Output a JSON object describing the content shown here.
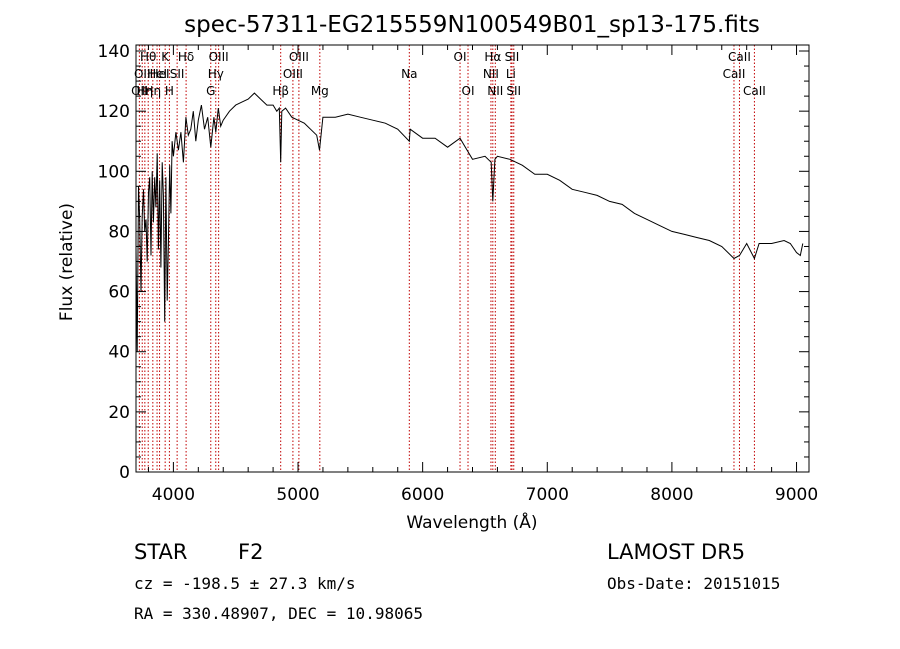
{
  "chart_data": {
    "type": "line",
    "title": "spec-57311-EG215559N100549B01_sp13-175.fits",
    "xlabel": "Wavelength (Å)",
    "ylabel": "Flux (relative)",
    "xlim": [
      3700,
      9100
    ],
    "ylim": [
      0,
      142
    ],
    "xticks": [
      4000,
      5000,
      6000,
      7000,
      8000,
      9000
    ],
    "yticks": [
      0,
      20,
      40,
      60,
      80,
      100,
      120,
      140
    ],
    "grid": false,
    "line_color": "#000000",
    "marker_color": "#c00000",
    "series": [
      {
        "x": [
          3700,
          3710,
          3720,
          3730,
          3740,
          3750,
          3760,
          3770,
          3780,
          3790,
          3800,
          3810,
          3820,
          3830,
          3840,
          3850,
          3860,
          3870,
          3880,
          3890,
          3900,
          3910,
          3920,
          3930,
          3940,
          3950,
          3960,
          3970,
          3980,
          3990,
          4000,
          4020,
          4040,
          4060,
          4080,
          4100,
          4120,
          4140,
          4160,
          4180,
          4200,
          4225,
          4250,
          4275,
          4300,
          4325,
          4340,
          4360,
          4380,
          4400,
          4450,
          4500,
          4550,
          4600,
          4650,
          4700,
          4750,
          4800,
          4830,
          4850,
          4861,
          4870,
          4900,
          4950,
          5000,
          5050,
          5100,
          5150,
          5172,
          5200,
          5300,
          5400,
          5500,
          5600,
          5700,
          5800,
          5893,
          5900,
          6000,
          6100,
          6200,
          6300,
          6400,
          6500,
          6550,
          6563,
          6580,
          6600,
          6700,
          6800,
          6900,
          7000,
          7100,
          7200,
          7300,
          7400,
          7500,
          7600,
          7700,
          7800,
          7900,
          8000,
          8100,
          8200,
          8300,
          8400,
          8498,
          8542,
          8600,
          8662,
          8700,
          8800,
          8900,
          8950,
          9000,
          9030,
          9050
        ],
        "y": [
          75,
          40,
          95,
          84,
          60,
          85,
          94,
          80,
          84,
          70,
          93,
          98,
          72,
          100,
          83,
          98,
          88,
          106,
          74,
          97,
          68,
          103,
          92,
          50,
          98,
          57,
          76,
          102,
          86,
          110,
          105,
          113,
          107,
          113,
          103,
          118,
          112,
          114,
          120,
          110,
          117,
          122,
          114,
          118,
          108,
          118,
          113,
          121,
          115,
          117,
          120,
          122,
          123,
          124,
          126,
          124,
          122,
          122,
          120,
          121,
          103,
          120,
          121,
          118,
          117,
          116,
          114,
          112,
          107,
          118,
          118,
          119,
          118,
          117,
          116,
          114,
          110,
          114,
          111,
          111,
          108,
          111,
          104,
          105,
          103,
          90,
          104,
          105,
          104,
          102,
          99,
          99,
          97,
          94,
          93,
          92,
          90,
          89,
          86,
          84,
          82,
          80,
          79,
          78,
          77,
          75,
          71,
          72,
          76,
          71,
          76,
          76,
          77,
          76,
          73,
          72,
          76
        ]
      }
    ],
    "line_labels": [
      {
        "x": 3727,
        "row": 2,
        "label": "OII"
      },
      {
        "x": 3750,
        "row": 1,
        "label": "OII"
      },
      {
        "x": 3771,
        "row": 2,
        "label": "Hη"
      },
      {
        "x": 3798,
        "row": 0,
        "label": "Hθ"
      },
      {
        "x": 3835,
        "row": 2,
        "label": "Hη"
      },
      {
        "x": 3869,
        "row": 1,
        "label": "HeI"
      },
      {
        "x": 3889,
        "row": 1,
        "label": "HeI"
      },
      {
        "x": 3934,
        "row": 0,
        "label": "K"
      },
      {
        "x": 3968,
        "row": 2,
        "label": "H"
      },
      {
        "x": 4030,
        "row": 1,
        "label": "SII"
      },
      {
        "x": 4102,
        "row": 0,
        "label": "Hδ"
      },
      {
        "x": 4300,
        "row": 2,
        "label": "G"
      },
      {
        "x": 4340,
        "row": 1,
        "label": "Hγ"
      },
      {
        "x": 4363,
        "row": 0,
        "label": "OIII"
      },
      {
        "x": 4861,
        "row": 2,
        "label": "Hβ"
      },
      {
        "x": 4959,
        "row": 1,
        "label": "OIII"
      },
      {
        "x": 5007,
        "row": 0,
        "label": "OIII"
      },
      {
        "x": 5175,
        "row": 2,
        "label": "Mg"
      },
      {
        "x": 5893,
        "row": 1,
        "label": "Na"
      },
      {
        "x": 6300,
        "row": 0,
        "label": "OI"
      },
      {
        "x": 6364,
        "row": 2,
        "label": "OI"
      },
      {
        "x": 6548,
        "row": 1,
        "label": "NII"
      },
      {
        "x": 6563,
        "row": 0,
        "label": "Hα"
      },
      {
        "x": 6583,
        "row": 2,
        "label": "NII"
      },
      {
        "x": 6708,
        "row": 1,
        "label": "Li"
      },
      {
        "x": 6717,
        "row": 0,
        "label": "SII"
      },
      {
        "x": 6731,
        "row": 2,
        "label": "SII"
      },
      {
        "x": 8498,
        "row": 1,
        "label": "CaII"
      },
      {
        "x": 8542,
        "row": 0,
        "label": "CaII"
      },
      {
        "x": 8662,
        "row": 2,
        "label": "CaII"
      }
    ]
  },
  "info": {
    "object_class": "STAR",
    "subclass": "F2",
    "survey": "LAMOST DR5",
    "redshift_line": "cz = -198.5 ± 27.3 km/s",
    "obs_date": "Obs-Date: 20151015",
    "coords": "RA = 330.48907, DEC =  10.98065"
  }
}
